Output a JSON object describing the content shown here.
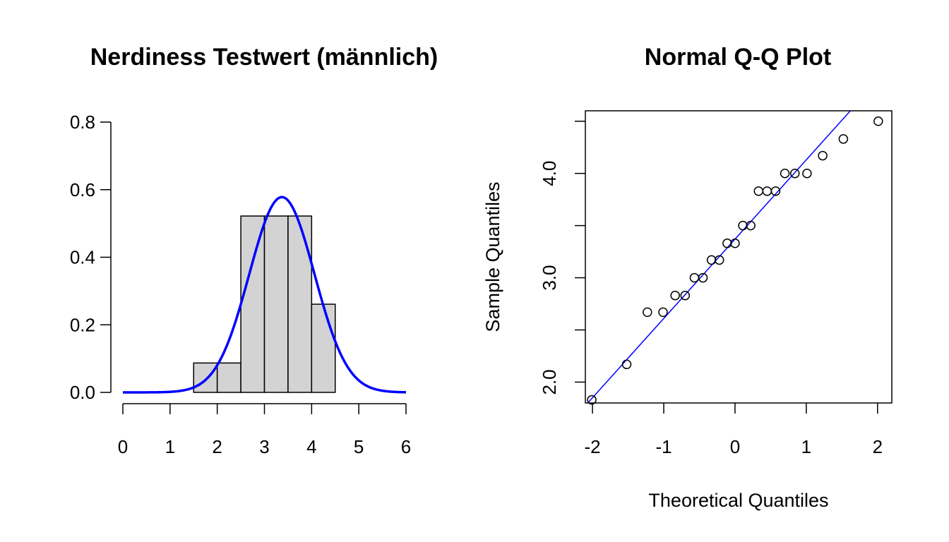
{
  "chart_data": [
    {
      "type": "bar",
      "subtype": "histogram",
      "title": "Nerdiness Testwert (männlich)",
      "xlabel": "",
      "ylabel": "",
      "xlim": [
        0,
        6
      ],
      "ylim": [
        0,
        0.8
      ],
      "x_ticks": [
        "0",
        "1",
        "2",
        "3",
        "4",
        "5",
        "6"
      ],
      "y_ticks": [
        "0.0",
        "0.2",
        "0.4",
        "0.6",
        "0.8"
      ],
      "bins": [
        {
          "from": 1.5,
          "to": 2.0,
          "density": 0.087
        },
        {
          "from": 2.0,
          "to": 2.5,
          "density": 0.087
        },
        {
          "from": 2.5,
          "to": 3.0,
          "density": 0.522
        },
        {
          "from": 3.0,
          "to": 3.5,
          "density": 0.522
        },
        {
          "from": 3.5,
          "to": 4.0,
          "density": 0.522
        },
        {
          "from": 4.0,
          "to": 4.5,
          "density": 0.261
        }
      ],
      "bar_color": "#d3d3d3",
      "density_curve": {
        "type": "normal",
        "mean": 3.37,
        "sd": 0.69,
        "peak": 0.578,
        "color": "#0000ff"
      }
    },
    {
      "type": "scatter",
      "title": "Normal Q-Q Plot",
      "xlabel": "Theoretical Quantiles",
      "ylabel": "Sample Quantiles",
      "xlim": [
        -2.1,
        2.2
      ],
      "ylim": [
        1.8,
        4.6
      ],
      "x_ticks": [
        "-2",
        "-1",
        "0",
        "1",
        "2"
      ],
      "y_ticks": [
        "2.0",
        "3.0",
        "4.0"
      ],
      "x": [
        -2.01,
        -1.52,
        -1.23,
        -1.01,
        -0.84,
        -0.7,
        -0.57,
        -0.45,
        -0.33,
        -0.22,
        -0.11,
        0.0,
        0.11,
        0.22,
        0.33,
        0.45,
        0.57,
        0.7,
        0.84,
        1.01,
        1.23,
        1.52,
        2.01
      ],
      "y": [
        1.83,
        2.17,
        2.67,
        2.67,
        2.83,
        2.83,
        3.0,
        3.0,
        3.17,
        3.17,
        3.33,
        3.33,
        3.5,
        3.5,
        3.83,
        3.83,
        3.83,
        4.0,
        4.0,
        4.0,
        4.17,
        4.33,
        4.5
      ],
      "reference_line": {
        "intercept": 3.37,
        "slope": 0.76,
        "color": "#0000ff"
      }
    }
  ]
}
